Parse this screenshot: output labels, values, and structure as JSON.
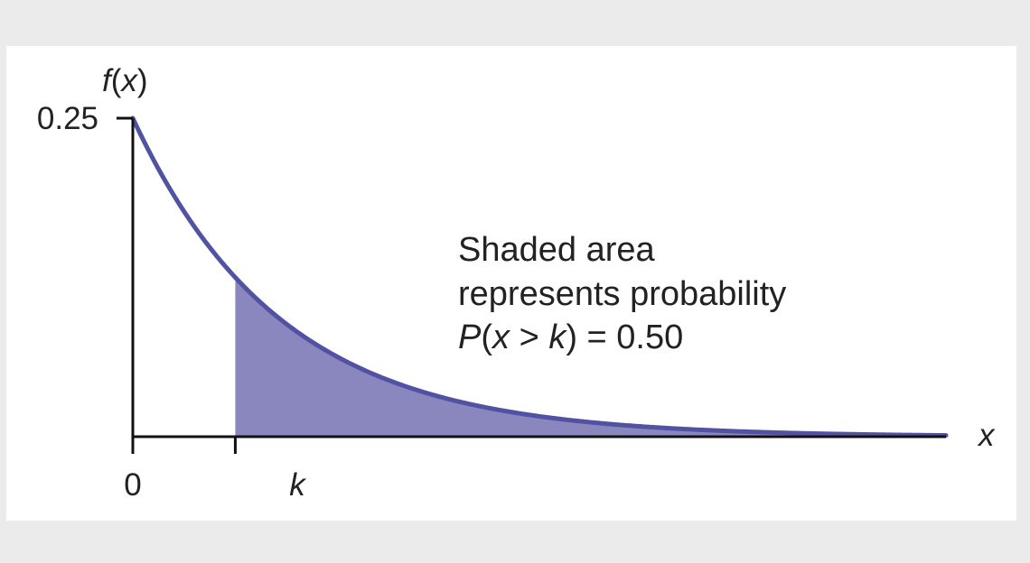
{
  "chart_data": {
    "type": "area",
    "distribution": "exponential",
    "rate": 0.25,
    "y_tick_labels": [
      {
        "value": 0.25,
        "label": "0.25"
      }
    ],
    "x_tick_labels": [
      {
        "value": 0,
        "label": "0"
      },
      {
        "value": 2.7726,
        "label": "k"
      }
    ],
    "ylabel": {
      "func": "f",
      "open": "(",
      "var": "x",
      "close": ")"
    },
    "xlabel": "x",
    "xlim": [
      0,
      22
    ],
    "ylim": [
      0,
      0.25
    ],
    "shaded_from": 2.7726,
    "shaded_probability": 0.5,
    "annotation": {
      "line1": "Shaded area",
      "line2": "represents probability",
      "line3": {
        "p": "P",
        "open": "(",
        "x": "x",
        "gt": " > ",
        "k": "k",
        "rest": ") = 0.50"
      }
    },
    "colors": {
      "curve": "#5252a3",
      "shade": "#8a87bf",
      "axis": "#111111",
      "text": "#222222"
    }
  }
}
